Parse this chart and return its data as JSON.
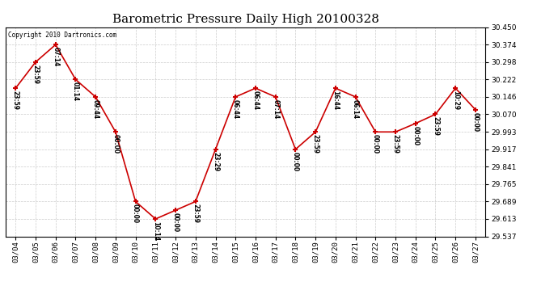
{
  "title": "Barometric Pressure Daily High 20100328",
  "copyright": "Copyright 2010 Dartronics.com",
  "dates": [
    "03/04",
    "03/05",
    "03/06",
    "03/07",
    "03/08",
    "03/09",
    "03/10",
    "03/11",
    "03/12",
    "03/13",
    "03/14",
    "03/15",
    "03/16",
    "03/17",
    "03/18",
    "03/19",
    "03/20",
    "03/21",
    "03/22",
    "03/23",
    "03/24",
    "03/25",
    "03/26",
    "03/27"
  ],
  "values": [
    30.184,
    30.298,
    30.374,
    30.222,
    30.146,
    29.993,
    29.689,
    29.613,
    29.651,
    29.689,
    29.917,
    30.146,
    30.184,
    30.146,
    29.917,
    29.993,
    30.184,
    30.146,
    29.993,
    29.993,
    30.03,
    30.07,
    30.184,
    30.09
  ],
  "time_labels": [
    "23:59",
    "23:59",
    "07:14",
    "01:14",
    "09:44",
    "00:00",
    "00:00",
    "10:14",
    "00:00",
    "23:59",
    "23:29",
    "06:44",
    "06:44",
    "07:14",
    "00:00",
    "23:59",
    "16:44",
    "06:14",
    "00:00",
    "23:59",
    "00:00",
    "23:59",
    "10:29",
    "00:00"
  ],
  "ylim_min": 29.537,
  "ylim_max": 30.45,
  "yticks": [
    29.537,
    29.613,
    29.689,
    29.765,
    29.841,
    29.917,
    29.993,
    30.07,
    30.146,
    30.222,
    30.298,
    30.374,
    30.45
  ],
  "line_color": "#cc0000",
  "marker_color": "#cc0000",
  "bg_color": "#ffffff",
  "grid_color": "#cccccc",
  "title_fontsize": 11,
  "annot_fontsize": 5.5,
  "copyright_fontsize": 5.5,
  "tick_fontsize": 6.5,
  "fig_width": 6.9,
  "fig_height": 3.75,
  "dpi": 100
}
